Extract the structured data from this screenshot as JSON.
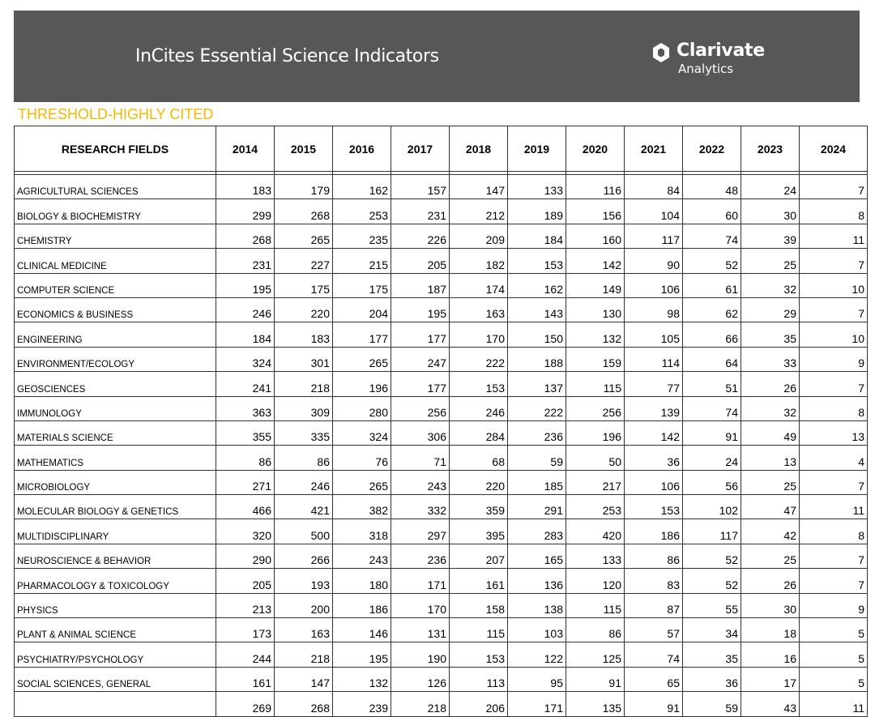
{
  "header": {
    "title": "InCites Essential Science Indicators",
    "brand_name": "Clarivate",
    "brand_sub": "Analytics",
    "bar_color": "#575757"
  },
  "subtitle": "THRESHOLD-HIGHLY CITED",
  "table": {
    "columns": [
      "RESEARCH FIELDS",
      "2014",
      "2015",
      "2016",
      "2017",
      "2018",
      "2019",
      "2020",
      "2021",
      "2022",
      "2023",
      "2024"
    ],
    "rows": [
      [
        "AGRICULTURAL SCIENCES",
        "183",
        "179",
        "162",
        "157",
        "147",
        "133",
        "116",
        "84",
        "48",
        "24",
        "7"
      ],
      [
        "BIOLOGY & BIOCHEMISTRY",
        "299",
        "268",
        "253",
        "231",
        "212",
        "189",
        "156",
        "104",
        "60",
        "30",
        "8"
      ],
      [
        "CHEMISTRY",
        "268",
        "265",
        "235",
        "226",
        "209",
        "184",
        "160",
        "117",
        "74",
        "39",
        "11"
      ],
      [
        "CLINICAL MEDICINE",
        "231",
        "227",
        "215",
        "205",
        "182",
        "153",
        "142",
        "90",
        "52",
        "25",
        "7"
      ],
      [
        "COMPUTER SCIENCE",
        "195",
        "175",
        "175",
        "187",
        "174",
        "162",
        "149",
        "106",
        "61",
        "32",
        "10"
      ],
      [
        "ECONOMICS & BUSINESS",
        "246",
        "220",
        "204",
        "195",
        "163",
        "143",
        "130",
        "98",
        "62",
        "29",
        "7"
      ],
      [
        "ENGINEERING",
        "184",
        "183",
        "177",
        "177",
        "170",
        "150",
        "132",
        "105",
        "66",
        "35",
        "10"
      ],
      [
        "ENVIRONMENT/ECOLOGY",
        "324",
        "301",
        "265",
        "247",
        "222",
        "188",
        "159",
        "114",
        "64",
        "33",
        "9"
      ],
      [
        "GEOSCIENCES",
        "241",
        "218",
        "196",
        "177",
        "153",
        "137",
        "115",
        "77",
        "51",
        "26",
        "7"
      ],
      [
        "IMMUNOLOGY",
        "363",
        "309",
        "280",
        "256",
        "246",
        "222",
        "256",
        "139",
        "74",
        "32",
        "8"
      ],
      [
        "MATERIALS SCIENCE",
        "355",
        "335",
        "324",
        "306",
        "284",
        "236",
        "196",
        "142",
        "91",
        "49",
        "13"
      ],
      [
        "MATHEMATICS",
        "86",
        "86",
        "76",
        "71",
        "68",
        "59",
        "50",
        "36",
        "24",
        "13",
        "4"
      ],
      [
        "MICROBIOLOGY",
        "271",
        "246",
        "265",
        "243",
        "220",
        "185",
        "217",
        "106",
        "56",
        "25",
        "7"
      ],
      [
        "MOLECULAR BIOLOGY & GENETICS",
        "466",
        "421",
        "382",
        "332",
        "359",
        "291",
        "253",
        "153",
        "102",
        "47",
        "11"
      ],
      [
        "MULTIDISCIPLINARY",
        "320",
        "500",
        "318",
        "297",
        "395",
        "283",
        "420",
        "186",
        "117",
        "42",
        "8"
      ],
      [
        "NEUROSCIENCE & BEHAVIOR",
        "290",
        "266",
        "243",
        "236",
        "207",
        "165",
        "133",
        "86",
        "52",
        "25",
        "7"
      ],
      [
        "PHARMACOLOGY & TOXICOLOGY",
        "205",
        "193",
        "180",
        "171",
        "161",
        "136",
        "120",
        "83",
        "52",
        "26",
        "7"
      ],
      [
        "PHYSICS",
        "213",
        "200",
        "186",
        "170",
        "158",
        "138",
        "115",
        "87",
        "55",
        "30",
        "9"
      ],
      [
        "PLANT & ANIMAL SCIENCE",
        "173",
        "163",
        "146",
        "131",
        "115",
        "103",
        "86",
        "57",
        "34",
        "18",
        "5"
      ],
      [
        "PSYCHIATRY/PSYCHOLOGY",
        "244",
        "218",
        "195",
        "190",
        "153",
        "122",
        "125",
        "74",
        "35",
        "16",
        "5"
      ],
      [
        "SOCIAL SCIENCES, GENERAL",
        "161",
        "147",
        "132",
        "126",
        "113",
        "95",
        "91",
        "65",
        "36",
        "17",
        "5"
      ],
      [
        "",
        "269",
        "268",
        "239",
        "218",
        "206",
        "171",
        "135",
        "91",
        "59",
        "43",
        "11"
      ]
    ]
  }
}
